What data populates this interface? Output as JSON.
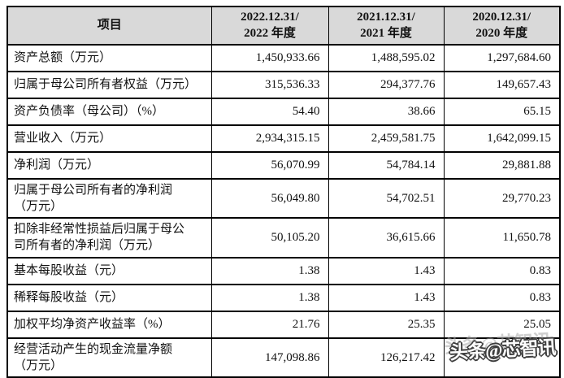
{
  "table": {
    "header": {
      "item": "项目",
      "periods": [
        "2022.12.31/\n2022 年度",
        "2021.12.31/\n2021 年度",
        "2020.12.31/\n2020 年度"
      ]
    },
    "rows": [
      {
        "label": "资产总额（万元）",
        "values": [
          "1,450,933.66",
          "1,488,595.02",
          "1,297,684.60"
        ]
      },
      {
        "label": "归属于母公司所有者权益（万元）",
        "values": [
          "315,536.33",
          "294,377.76",
          "149,657.43"
        ]
      },
      {
        "label": "资产负债率（母公司）（%）",
        "values": [
          "54.40",
          "38.66",
          "65.15"
        ]
      },
      {
        "label": "营业收入（万元）",
        "values": [
          "2,934,315.15",
          "2,459,581.75",
          "1,642,099.15"
        ]
      },
      {
        "label": "净利润（万元）",
        "values": [
          "56,070.99",
          "54,784.14",
          "29,881.88"
        ]
      },
      {
        "label": "归属于母公司所有者的净利润\n（万元）",
        "values": [
          "56,049.80",
          "54,702.51",
          "29,770.23"
        ]
      },
      {
        "label": "扣除非经常性损益后归属于母公\n司所有者的净利润（万元）",
        "values": [
          "50,105.20",
          "36,615.66",
          "11,650.78"
        ]
      },
      {
        "label": "基本每股收益（元）",
        "values": [
          "1.38",
          "1.43",
          "0.83"
        ]
      },
      {
        "label": "稀释每股收益（元）",
        "values": [
          "1.38",
          "1.43",
          "0.83"
        ]
      },
      {
        "label": "加权平均净资产收益率（%）",
        "values": [
          "21.76",
          "25.35",
          "25.05"
        ]
      },
      {
        "label": "经营活动产生的现金流量净额\n（万元）",
        "values": [
          "147,098.86",
          "126,217.42",
          ""
        ]
      }
    ]
  },
  "watermark": {
    "text": "头条@芯智讯"
  },
  "colors": {
    "header_bg": "#d9d9d9",
    "border": "#000000",
    "text": "#111111"
  }
}
